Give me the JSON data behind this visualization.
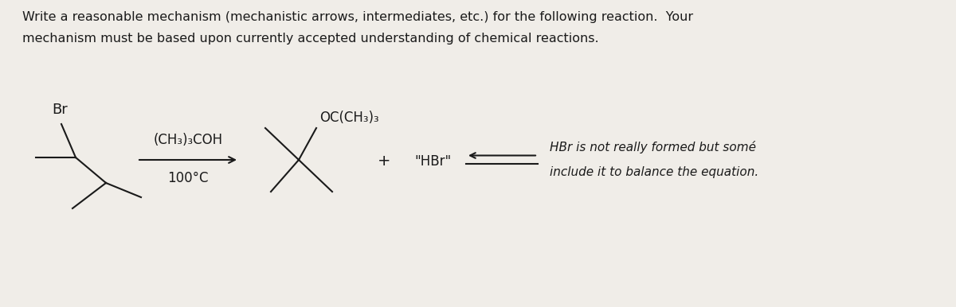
{
  "bg_color": "#f0ede8",
  "text_color": "#1a1a1a",
  "title_line1": "Write a reasonable mechanism (mechanistic arrows, intermediates, etc.) for the following reaction.  Your",
  "title_line2": "mechanism must be based upon currently accepted understanding of chemical reactions.",
  "reagent_above": "(CH₃)₃COH",
  "reagent_below": "100°C",
  "product_label": "OC(CH₃)₃",
  "plus_sign": "+",
  "hbr_label": "\"HBr\"",
  "note_line1": "HBr is not really formed but somé",
  "note_line2": "include it to balance the equation.",
  "br_label": "Br",
  "font_size_title": 11.5,
  "font_size_chem": 12,
  "font_size_note": 11
}
